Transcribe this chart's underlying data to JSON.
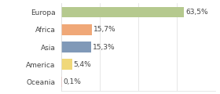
{
  "categories": [
    "Europa",
    "Africa",
    "Asia",
    "America",
    "Oceania"
  ],
  "values": [
    63.5,
    15.7,
    15.3,
    5.4,
    0.1
  ],
  "labels": [
    "63,5%",
    "15,7%",
    "15,3%",
    "5,4%",
    "0,1%"
  ],
  "bar_colors": [
    "#b5c98e",
    "#f0a878",
    "#8099b8",
    "#f0d87a",
    "#f4a0a0"
  ],
  "background_color": "#ffffff",
  "label_fontsize": 6.5,
  "category_fontsize": 6.5,
  "xlim": [
    0,
    80
  ],
  "grid_color": "#dddddd",
  "text_color": "#444444"
}
